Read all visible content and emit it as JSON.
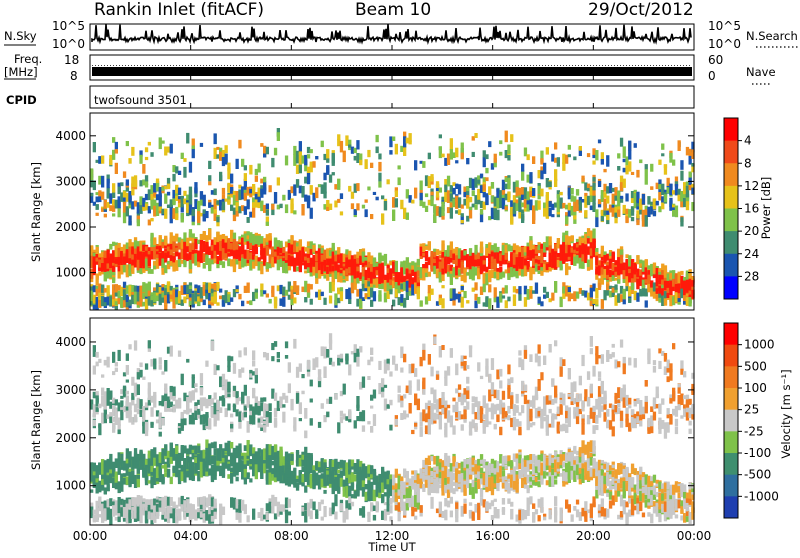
{
  "header": {
    "station": "Rankin Inlet (fitACF)",
    "beam": "Beam 10",
    "date": "29/Oct/2012"
  },
  "top_panels": {
    "nsky_label": "N.Sky",
    "nsky_ticks": [
      "10^5",
      "10^0"
    ],
    "nsearch_label": "N.Search",
    "nsearch_ticks": [
      "10^5",
      "10^0"
    ],
    "freq_label": "Freq.",
    "freq_unit": "[MHz]",
    "freq_ticks": [
      "18",
      "8"
    ],
    "nave_label": "Nave",
    "nave_ticks": [
      "60",
      "0"
    ],
    "cpid_label": "CPID",
    "cpid_text": "twofsound 3501"
  },
  "chart_data": [
    {
      "type": "heatmap",
      "name": "power",
      "ylabel": "Slant Range [km]",
      "ylim": [
        180,
        4500
      ],
      "yticks": [
        "1000",
        "2000",
        "3000",
        "4000"
      ],
      "xlim_hours": [
        0,
        24
      ],
      "colorbar": {
        "label": "Power [dB]",
        "ticks": [
          "4",
          "8",
          "12",
          "16",
          "20",
          "24",
          "28"
        ],
        "colors": [
          "#0000ff",
          "#1a55b0",
          "#3f8c70",
          "#7fc24a",
          "#e6c21a",
          "#f08a1f",
          "#f04a1a",
          "#ff0000"
        ]
      }
    },
    {
      "type": "heatmap",
      "name": "velocity",
      "ylabel": "Slant Range [km]",
      "ylim": [
        180,
        4500
      ],
      "yticks": [
        "1000",
        "2000",
        "3000",
        "4000"
      ],
      "xlim_hours": [
        0,
        24
      ],
      "colorbar": {
        "label": "Velocity [m s⁻¹]",
        "ticks": [
          "1000",
          "500",
          "100",
          "25",
          "-25",
          "-100",
          "-500",
          "-1000"
        ],
        "colors": [
          "#1f3fb0",
          "#2f6f9f",
          "#3f8f6f",
          "#7fc24a",
          "#c8c8c8",
          "#f0a030",
          "#f07a20",
          "#f04a10",
          "#ff0000"
        ]
      }
    }
  ],
  "xaxis": {
    "label": "Time UT",
    "ticks": [
      "00:00",
      "04:00",
      "08:00",
      "12:00",
      "16:00",
      "20:00",
      "00:00"
    ]
  }
}
